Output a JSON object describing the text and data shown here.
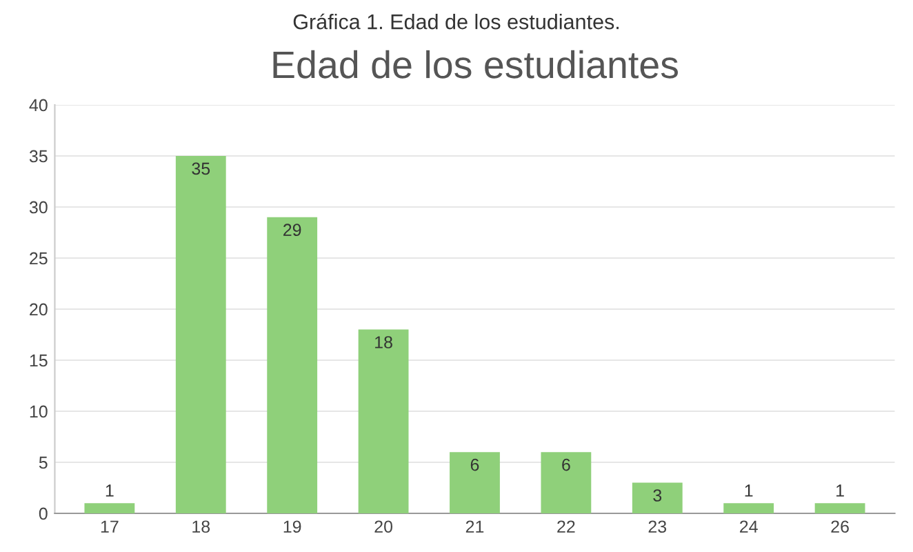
{
  "chart_data": {
    "type": "bar",
    "title": "Edad de los estudiantes",
    "annotations": [
      "Gráfica 1. Edad de los estudiantes."
    ],
    "categories": [
      "17",
      "18",
      "19",
      "20",
      "21",
      "22",
      "23",
      "24",
      "26"
    ],
    "values": [
      1,
      35,
      29,
      18,
      6,
      6,
      3,
      1,
      1
    ],
    "color": "#8fd07a",
    "ylim": [
      0,
      40
    ],
    "yticks": [
      0,
      5,
      10,
      15,
      20,
      25,
      30,
      35,
      40
    ],
    "grid": "y",
    "data_labels": true
  }
}
